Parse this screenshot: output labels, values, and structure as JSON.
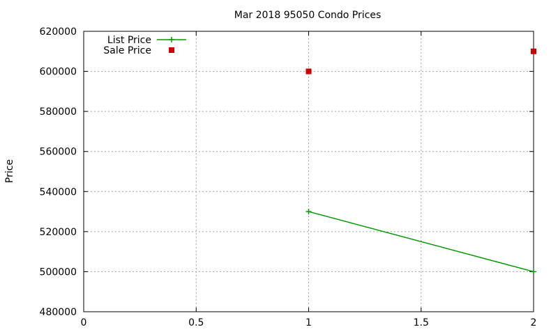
{
  "chart_data": {
    "type": "line",
    "title": "Mar 2018 95050 Condo Prices",
    "xlabel": "",
    "ylabel": "Price",
    "xlim": [
      0,
      2
    ],
    "ylim": [
      480000,
      620000
    ],
    "xticks": [
      0,
      0.5,
      1,
      1.5,
      2
    ],
    "xtick_labels": [
      "0",
      "0.5",
      "1",
      "1.5",
      "2"
    ],
    "yticks": [
      480000,
      500000,
      520000,
      540000,
      560000,
      580000,
      600000,
      620000
    ],
    "ytick_labels": [
      "480000",
      "500000",
      "520000",
      "540000",
      "560000",
      "580000",
      "600000",
      "620000"
    ],
    "grid": true,
    "legend_position": "top-left",
    "series": [
      {
        "name": "List Price",
        "style": "linespoints",
        "marker": "plus",
        "color": "#009900",
        "points": [
          [
            1,
            530000
          ],
          [
            2,
            500000
          ]
        ]
      },
      {
        "name": "Sale Price",
        "style": "points",
        "marker": "square",
        "color": "#cc0000",
        "points": [
          [
            1,
            600000
          ],
          [
            2,
            610000
          ]
        ]
      }
    ]
  }
}
